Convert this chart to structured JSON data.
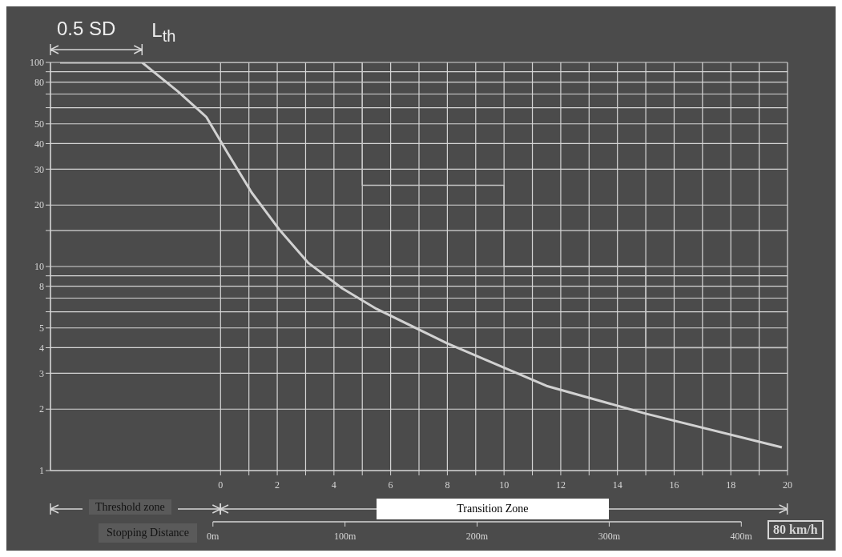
{
  "chart_data": {
    "type": "line",
    "series": [
      {
        "type": "line",
        "color": "#d2d2d2",
        "x": [
          -5.66,
          -2.77,
          -1.5,
          -0.5,
          0.25,
          1.1,
          2.1,
          3.1,
          4.3,
          5.5,
          8,
          11.5,
          15,
          19.8
        ],
        "values": [
          100,
          100,
          72,
          54,
          36,
          23,
          15,
          10.4,
          7.8,
          6.2,
          4.2,
          2.6,
          1.9,
          1.3
        ]
      },
      {
        "type": "step",
        "color": "#c4c4c4",
        "x": [
          -5.66,
          5,
          10,
          15,
          20
        ],
        "values": [
          100,
          25,
          10,
          4,
          4
        ]
      }
    ],
    "log": "y",
    "grid": true,
    "marker": "none",
    "line_style": "solid",
    "xlim": [
      -6,
      20
    ],
    "xticks": [
      0,
      {
        "value": 1,
        "label": null
      },
      2,
      {
        "value": 3,
        "label": null
      },
      4,
      {
        "value": 5,
        "label": null
      },
      6,
      {
        "value": 7,
        "label": null
      },
      8,
      {
        "value": 9,
        "label": null
      },
      10,
      {
        "value": 11,
        "label": null
      },
      12,
      {
        "value": 13,
        "label": null
      },
      14,
      {
        "value": 15,
        "label": null
      },
      16,
      {
        "value": 17,
        "label": null
      },
      18,
      {
        "value": 19,
        "label": null
      },
      20
    ],
    "ylim": [
      1,
      100
    ],
    "yticks": [
      1,
      2,
      3,
      4,
      5,
      {
        "value": 6,
        "label": null
      },
      {
        "value": 7,
        "label": null
      },
      8,
      {
        "value": 9,
        "label": null
      },
      10,
      {
        "value": 15,
        "label": null
      },
      20,
      30,
      40,
      50,
      {
        "value": 60,
        "label": null
      },
      {
        "value": 70,
        "label": null
      },
      80,
      {
        "value": 90,
        "label": null
      },
      100
    ],
    "x2lim": [
      -123,
      435
    ],
    "x2ticks": [
      {
        "value": 0,
        "label": "0m"
      },
      {
        "value": 100,
        "label": "100m"
      },
      {
        "value": 200,
        "label": "200m"
      },
      {
        "value": 300,
        "label": "300m"
      },
      {
        "value": 400,
        "label": "400m"
      }
    ],
    "annotations": [
      "0.5 SD",
      "L$_{th}$",
      "Threshold zone",
      "Transition Zone",
      "Stopping Distance",
      "80 km/h"
    ]
  }
}
